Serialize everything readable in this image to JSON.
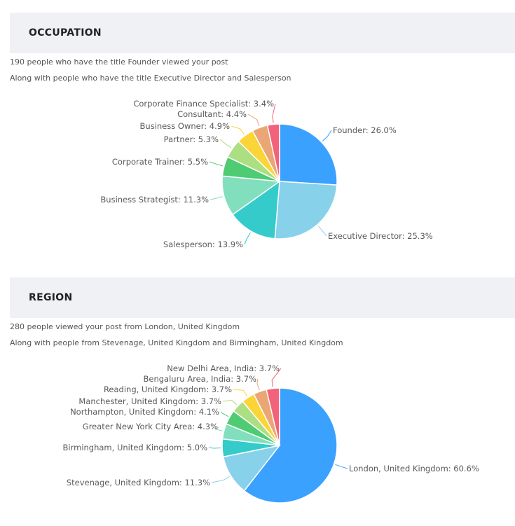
{
  "sections": [
    {
      "title": "OCCUPATION",
      "summary": "190 people who have the title Founder viewed your post",
      "detail": "Along with people who have the title Executive Director and Salesperson"
    },
    {
      "title": "REGION",
      "summary": "280 people viewed your post from London, United Kingdom",
      "detail": "Along with people from Stevenage, United Kingdom and Birmingham, United Kingdom"
    }
  ],
  "chart_data": [
    {
      "type": "pie",
      "title": "",
      "unit": "%",
      "slices": [
        {
          "label": "Founder",
          "value": 26.0,
          "color": "#3aa1ff"
        },
        {
          "label": "Executive Director",
          "value": 25.3,
          "color": "#88d1ea"
        },
        {
          "label": "Salesperson",
          "value": 13.9,
          "color": "#36cbcb"
        },
        {
          "label": "Business Strategist",
          "value": 11.3,
          "color": "#82dfbe"
        },
        {
          "label": "Corporate Trainer",
          "value": 5.5,
          "color": "#4ecb73"
        },
        {
          "label": "Partner",
          "value": 5.3,
          "color": "#acdf82"
        },
        {
          "label": "Business Owner",
          "value": 4.9,
          "color": "#fbd437"
        },
        {
          "label": "Consultant",
          "value": 4.4,
          "color": "#eaa674"
        },
        {
          "label": "Corporate Finance Specialist",
          "value": 3.4,
          "color": "#f2637b"
        }
      ]
    },
    {
      "type": "pie",
      "title": "",
      "unit": "%",
      "slices": [
        {
          "label": "London, United Kingdom",
          "value": 60.6,
          "color": "#3aa1ff"
        },
        {
          "label": "Stevenage, United Kingdom",
          "value": 11.3,
          "color": "#88d1ea"
        },
        {
          "label": "Birmingham, United Kingdom",
          "value": 5.0,
          "color": "#36cbcb"
        },
        {
          "label": "Greater New York City Area",
          "value": 4.3,
          "color": "#82dfbe"
        },
        {
          "label": "Northampton, United Kingdom",
          "value": 4.1,
          "color": "#4ecb73"
        },
        {
          "label": "Manchester, United Kingdom",
          "value": 3.7,
          "color": "#acdf82"
        },
        {
          "label": "Reading, United Kingdom",
          "value": 3.7,
          "color": "#fbd437"
        },
        {
          "label": "Bengaluru Area, India",
          "value": 3.7,
          "color": "#eaa674"
        },
        {
          "label": "New Delhi Area, India",
          "value": 3.7,
          "color": "#f2637b"
        }
      ]
    }
  ]
}
